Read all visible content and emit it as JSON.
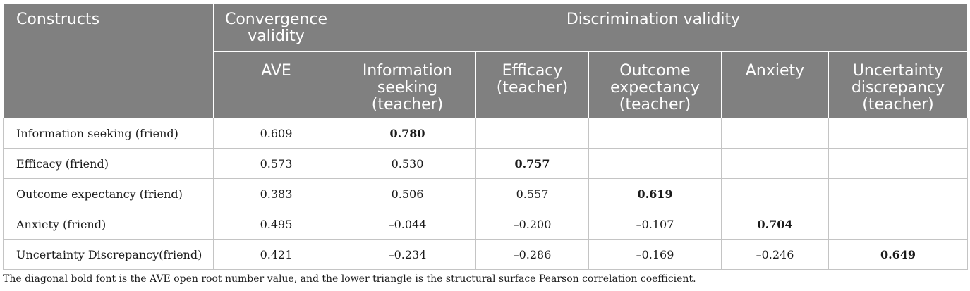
{
  "header": {
    "constructs": "Constructs",
    "convergence": "Convergence validity",
    "discrimination": "Discrimination validity",
    "ave": "AVE",
    "col_info": "Information seeking (teacher)",
    "col_efficacy": "Efficacy (teacher)",
    "col_outcome": "Outcome expectancy (teacher)",
    "col_anxiety": "Anxiety",
    "col_uncertainty": "Uncertainty discrepancy (teacher)"
  },
  "rows": [
    {
      "label": "Information seeking (friend)",
      "ave": "0.609",
      "c1": "0.780",
      "c2": "",
      "c3": "",
      "c4": "",
      "c5": ""
    },
    {
      "label": "Efficacy (friend)",
      "ave": "0.573",
      "c1": "0.530",
      "c2": "0.757",
      "c3": "",
      "c4": "",
      "c5": ""
    },
    {
      "label": "Outcome expectancy (friend)",
      "ave": "0.383",
      "c1": "0.506",
      "c2": "0.557",
      "c3": "0.619",
      "c4": "",
      "c5": ""
    },
    {
      "label": "Anxiety (friend)",
      "ave": "0.495",
      "c1": "–0.044",
      "c2": "–0.200",
      "c3": "–0.107",
      "c4": "0.704",
      "c5": ""
    },
    {
      "label": "Uncertainty Discrepancy(friend)",
      "ave": "0.421",
      "c1": "–0.234",
      "c2": "–0.286",
      "c3": "–0.169",
      "c4": "–0.246",
      "c5": "0.649"
    }
  ],
  "footnote": "The diagonal bold font is the AVE open root number value, and the lower triangle is the structural surface Pearson correlation coefficient.",
  "colors": {
    "header_bg": "#808080",
    "header_text": "#ffffff",
    "grid": "#c4c4c4"
  }
}
